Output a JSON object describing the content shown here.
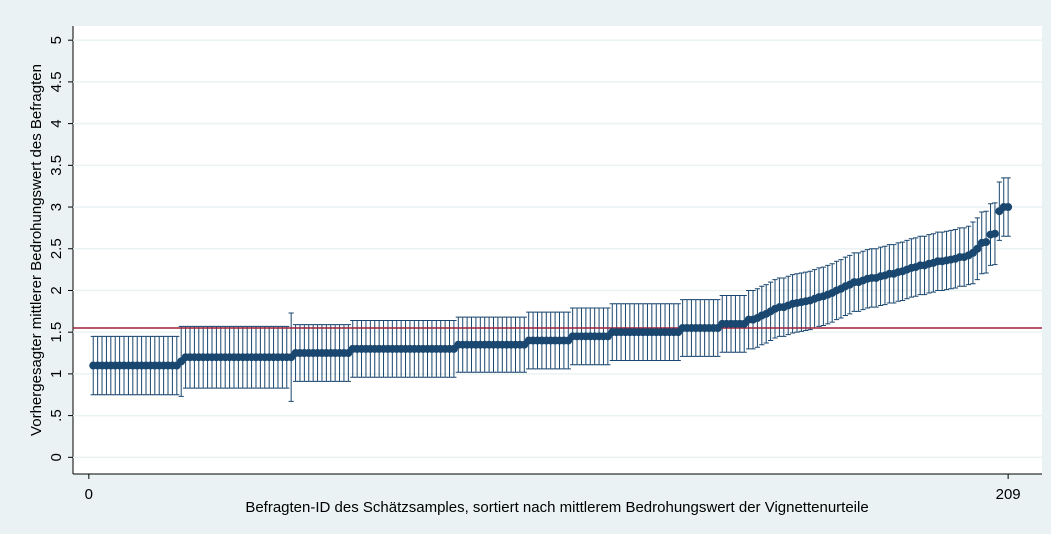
{
  "chart_data": {
    "type": "errorbar",
    "y_label": "Vorhergesagter mittlerer Bedrohungswert des Befragten",
    "x_label": "Befragten-ID des Schätzsamples, sortiert nach mittlerem Bedrohungswert der Vignettenurteile",
    "xlim": [
      -3.6,
      216.7
    ],
    "xticks": [
      0,
      209
    ],
    "ylim": [
      -0.2,
      5.17
    ],
    "yticks": [
      0,
      {
        "value": 0.5,
        "label": ".5"
      },
      1,
      1.5,
      2,
      2.5,
      3,
      3.5,
      4,
      4.5,
      5
    ],
    "grid": true,
    "reference_line": {
      "value": 1.55,
      "color": "#a0203c"
    },
    "x": [
      1,
      2,
      3,
      4,
      5,
      6,
      7,
      8,
      9,
      10,
      11,
      12,
      13,
      14,
      15,
      16,
      17,
      18,
      19,
      20,
      21,
      22,
      23,
      24,
      25,
      26,
      27,
      28,
      29,
      30,
      31,
      32,
      33,
      34,
      35,
      36,
      37,
      38,
      39,
      40,
      41,
      42,
      43,
      44,
      45,
      46,
      47,
      48,
      49,
      50,
      51,
      52,
      53,
      54,
      55,
      56,
      57,
      58,
      59,
      60,
      61,
      62,
      63,
      64,
      65,
      66,
      67,
      68,
      69,
      70,
      71,
      72,
      73,
      74,
      75,
      76,
      77,
      78,
      79,
      80,
      81,
      82,
      83,
      84,
      85,
      86,
      87,
      88,
      89,
      90,
      91,
      92,
      93,
      94,
      95,
      96,
      97,
      98,
      99,
      100,
      101,
      102,
      103,
      104,
      105,
      106,
      107,
      108,
      109,
      110,
      111,
      112,
      113,
      114,
      115,
      116,
      117,
      118,
      119,
      120,
      121,
      122,
      123,
      124,
      125,
      126,
      127,
      128,
      129,
      130,
      131,
      132,
      133,
      134,
      135,
      136,
      137,
      138,
      139,
      140,
      141,
      142,
      143,
      144,
      145,
      146,
      147,
      148,
      149,
      150,
      151,
      152,
      153,
      154,
      155,
      156,
      157,
      158,
      159,
      160,
      161,
      162,
      163,
      164,
      165,
      166,
      167,
      168,
      169,
      170,
      171,
      172,
      173,
      174,
      175,
      176,
      177,
      178,
      179,
      180,
      181,
      182,
      183,
      184,
      185,
      186,
      187,
      188,
      189,
      190,
      191,
      192,
      193,
      194,
      195,
      196,
      197,
      198,
      199,
      200,
      201,
      202,
      203,
      204,
      205,
      206,
      207,
      208,
      209
    ],
    "series": [
      {
        "color": "#1a476f",
        "values": [
          1.1,
          1.1,
          1.1,
          1.1,
          1.1,
          1.1,
          1.1,
          1.1,
          1.1,
          1.1,
          1.1,
          1.1,
          1.1,
          1.1,
          1.1,
          1.1,
          1.1,
          1.1,
          1.1,
          1.1,
          1.15,
          1.2,
          1.2,
          1.2,
          1.2,
          1.2,
          1.2,
          1.2,
          1.2,
          1.2,
          1.2,
          1.2,
          1.2,
          1.2,
          1.2,
          1.2,
          1.2,
          1.2,
          1.2,
          1.2,
          1.2,
          1.2,
          1.2,
          1.2,
          1.2,
          1.2,
          1.25,
          1.25,
          1.25,
          1.25,
          1.25,
          1.25,
          1.25,
          1.25,
          1.25,
          1.25,
          1.25,
          1.25,
          1.25,
          1.3,
          1.3,
          1.3,
          1.3,
          1.3,
          1.3,
          1.3,
          1.3,
          1.3,
          1.3,
          1.3,
          1.3,
          1.3,
          1.3,
          1.3,
          1.3,
          1.3,
          1.3,
          1.3,
          1.3,
          1.3,
          1.3,
          1.3,
          1.3,
          1.35,
          1.35,
          1.35,
          1.35,
          1.35,
          1.35,
          1.35,
          1.35,
          1.35,
          1.35,
          1.35,
          1.35,
          1.35,
          1.35,
          1.35,
          1.35,
          1.4,
          1.4,
          1.4,
          1.4,
          1.4,
          1.4,
          1.4,
          1.4,
          1.4,
          1.4,
          1.45,
          1.45,
          1.45,
          1.45,
          1.45,
          1.45,
          1.45,
          1.45,
          1.45,
          1.5,
          1.5,
          1.5,
          1.5,
          1.5,
          1.5,
          1.5,
          1.5,
          1.5,
          1.5,
          1.5,
          1.5,
          1.5,
          1.5,
          1.5,
          1.5,
          1.55,
          1.55,
          1.55,
          1.55,
          1.55,
          1.55,
          1.55,
          1.55,
          1.55,
          1.6,
          1.6,
          1.6,
          1.6,
          1.6,
          1.6,
          1.65,
          1.65,
          1.67,
          1.7,
          1.72,
          1.75,
          1.78,
          1.8,
          1.8,
          1.82,
          1.84,
          1.85,
          1.86,
          1.87,
          1.88,
          1.9,
          1.92,
          1.93,
          1.95,
          1.97,
          2.0,
          2.02,
          2.05,
          2.07,
          2.1,
          2.1,
          2.12,
          2.14,
          2.15,
          2.15,
          2.17,
          2.18,
          2.2,
          2.2,
          2.22,
          2.23,
          2.25,
          2.27,
          2.28,
          2.3,
          2.3,
          2.32,
          2.33,
          2.35,
          2.35,
          2.36,
          2.37,
          2.38,
          2.4,
          2.4,
          2.42,
          2.45,
          2.5,
          2.57,
          2.58,
          2.67,
          2.68,
          2.95,
          3.0,
          3.0
        ],
        "errors": [
          0.35,
          0.35,
          0.35,
          0.35,
          0.35,
          0.35,
          0.35,
          0.35,
          0.35,
          0.35,
          0.35,
          0.35,
          0.35,
          0.35,
          0.35,
          0.35,
          0.35,
          0.35,
          0.35,
          0.35,
          0.42,
          0.37,
          0.37,
          0.37,
          0.37,
          0.37,
          0.37,
          0.37,
          0.37,
          0.37,
          0.37,
          0.37,
          0.37,
          0.37,
          0.37,
          0.37,
          0.37,
          0.37,
          0.37,
          0.37,
          0.37,
          0.37,
          0.37,
          0.37,
          0.37,
          0.53,
          0.34,
          0.34,
          0.34,
          0.34,
          0.34,
          0.34,
          0.34,
          0.34,
          0.34,
          0.34,
          0.34,
          0.34,
          0.34,
          0.34,
          0.34,
          0.34,
          0.34,
          0.34,
          0.34,
          0.34,
          0.34,
          0.34,
          0.34,
          0.34,
          0.34,
          0.34,
          0.34,
          0.34,
          0.34,
          0.34,
          0.34,
          0.34,
          0.34,
          0.34,
          0.34,
          0.34,
          0.34,
          0.33,
          0.33,
          0.33,
          0.33,
          0.33,
          0.33,
          0.33,
          0.33,
          0.33,
          0.33,
          0.33,
          0.33,
          0.33,
          0.33,
          0.33,
          0.33,
          0.34,
          0.34,
          0.34,
          0.34,
          0.34,
          0.34,
          0.34,
          0.34,
          0.34,
          0.34,
          0.34,
          0.34,
          0.34,
          0.34,
          0.34,
          0.34,
          0.34,
          0.34,
          0.34,
          0.34,
          0.34,
          0.34,
          0.34,
          0.34,
          0.34,
          0.34,
          0.34,
          0.34,
          0.34,
          0.34,
          0.34,
          0.34,
          0.34,
          0.34,
          0.34,
          0.34,
          0.34,
          0.34,
          0.34,
          0.34,
          0.34,
          0.34,
          0.34,
          0.34,
          0.34,
          0.34,
          0.34,
          0.34,
          0.34,
          0.34,
          0.35,
          0.35,
          0.35,
          0.35,
          0.35,
          0.35,
          0.35,
          0.35,
          0.35,
          0.35,
          0.35,
          0.35,
          0.35,
          0.35,
          0.35,
          0.35,
          0.35,
          0.35,
          0.35,
          0.35,
          0.35,
          0.35,
          0.35,
          0.35,
          0.35,
          0.35,
          0.35,
          0.35,
          0.35,
          0.35,
          0.35,
          0.35,
          0.35,
          0.35,
          0.35,
          0.35,
          0.35,
          0.35,
          0.35,
          0.35,
          0.35,
          0.35,
          0.35,
          0.35,
          0.35,
          0.35,
          0.35,
          0.35,
          0.35,
          0.35,
          0.35,
          0.37,
          0.37,
          0.37,
          0.37,
          0.37,
          0.37,
          0.35,
          0.35,
          0.35
        ]
      }
    ]
  }
}
